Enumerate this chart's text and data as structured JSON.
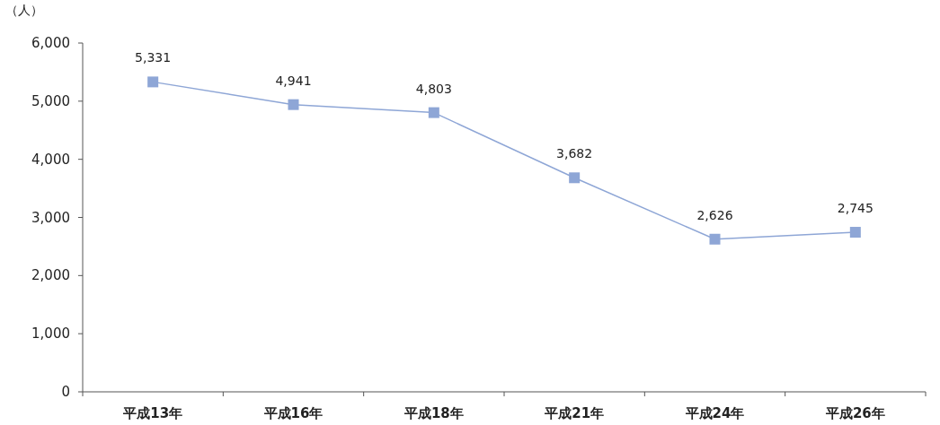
{
  "chart_data": {
    "type": "line",
    "ylabel": "（人）",
    "categories": [
      "平成13年",
      "平成16年",
      "平成18年",
      "平成21年",
      "平成24年",
      "平成26年"
    ],
    "series": [
      {
        "color": "#8ea6d6",
        "values": [
          5331,
          4941,
          4803,
          3682,
          2626,
          2745
        ],
        "value_labels": [
          "5,331",
          "4,941",
          "4,803",
          "3,682",
          "2,626",
          "2,745"
        ]
      }
    ],
    "ylim": [
      0,
      6000
    ],
    "yticks": [
      0,
      {
        "value": 1000,
        "label": "1,000"
      },
      {
        "value": 2000,
        "label": "2,000"
      },
      {
        "value": 3000,
        "label": "3,000"
      },
      {
        "value": 4000,
        "label": "4,000"
      },
      {
        "value": 5000,
        "label": "5,000"
      },
      {
        "value": 6000,
        "label": "6,000"
      }
    ],
    "marker": "square",
    "line_style": "solid"
  }
}
